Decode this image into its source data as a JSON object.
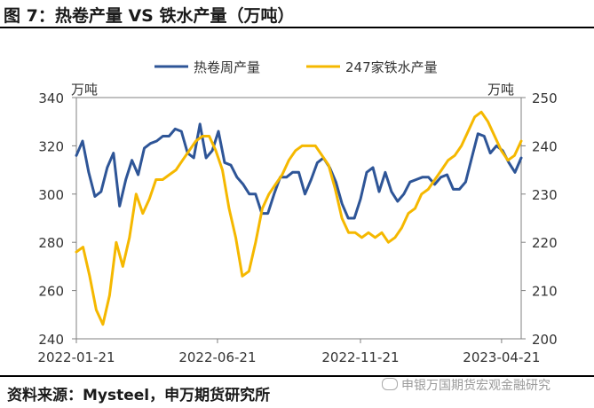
{
  "figure": {
    "title": "图 7：热卷产量 VS 铁水产量（万吨）",
    "source": "资料来源：Mysteel，申万期货研究所",
    "watermark": "申银万国期货宏观金融研究"
  },
  "colors": {
    "series1": "#2e5597",
    "series2": "#f5b800",
    "axis": "#808080",
    "text": "#333333"
  },
  "chart_data": {
    "type": "line",
    "x_ticks": [
      "2022-01-21",
      "2022-06-21",
      "2022-11-21",
      "2023-04-21"
    ],
    "x_range": [
      "2022-01-21",
      "2023-05-12"
    ],
    "left_axis": {
      "unit": "万吨",
      "ylim": [
        240,
        340
      ],
      "ticks": [
        240,
        260,
        280,
        300,
        320,
        340
      ]
    },
    "right_axis": {
      "unit": "万吨",
      "ylim": [
        200,
        250
      ],
      "ticks": [
        200,
        210,
        220,
        230,
        240,
        250
      ]
    },
    "legend": {
      "position": "top"
    },
    "series": [
      {
        "name": "热卷周产量",
        "axis": "left",
        "color": "#2e5597",
        "values": [
          316,
          322,
          309,
          299,
          301,
          311,
          317,
          295,
          306,
          314,
          308,
          319,
          321,
          322,
          324,
          324,
          327,
          326,
          317,
          315,
          329,
          315,
          318,
          326,
          313,
          312,
          307,
          304,
          300,
          300,
          292,
          292,
          300,
          307,
          307,
          309,
          309,
          300,
          306,
          313,
          315,
          311,
          305,
          296,
          290,
          290,
          298,
          309,
          311,
          301,
          309,
          301,
          297,
          300,
          305,
          306,
          307,
          307,
          304,
          307,
          308,
          302,
          302,
          305,
          315,
          325,
          324,
          317,
          320,
          318,
          313,
          309,
          315
        ]
      },
      {
        "name": "247家铁水产量",
        "axis": "right",
        "color": "#f5b800",
        "values": [
          218,
          219,
          213,
          206,
          203,
          209,
          220,
          215,
          221,
          230,
          226,
          229,
          233,
          233,
          234,
          235,
          237,
          239,
          241,
          242,
          242,
          239,
          235,
          227,
          221,
          213,
          214,
          220,
          227,
          230,
          232,
          234,
          237,
          239,
          240,
          240,
          240,
          238,
          236,
          231,
          225,
          222,
          222,
          221,
          222,
          221,
          222,
          220,
          221,
          223,
          226,
          227,
          230,
          231,
          233,
          235,
          237,
          238,
          240,
          243,
          246,
          247,
          245,
          242,
          239,
          237,
          238,
          241
        ]
      }
    ]
  }
}
